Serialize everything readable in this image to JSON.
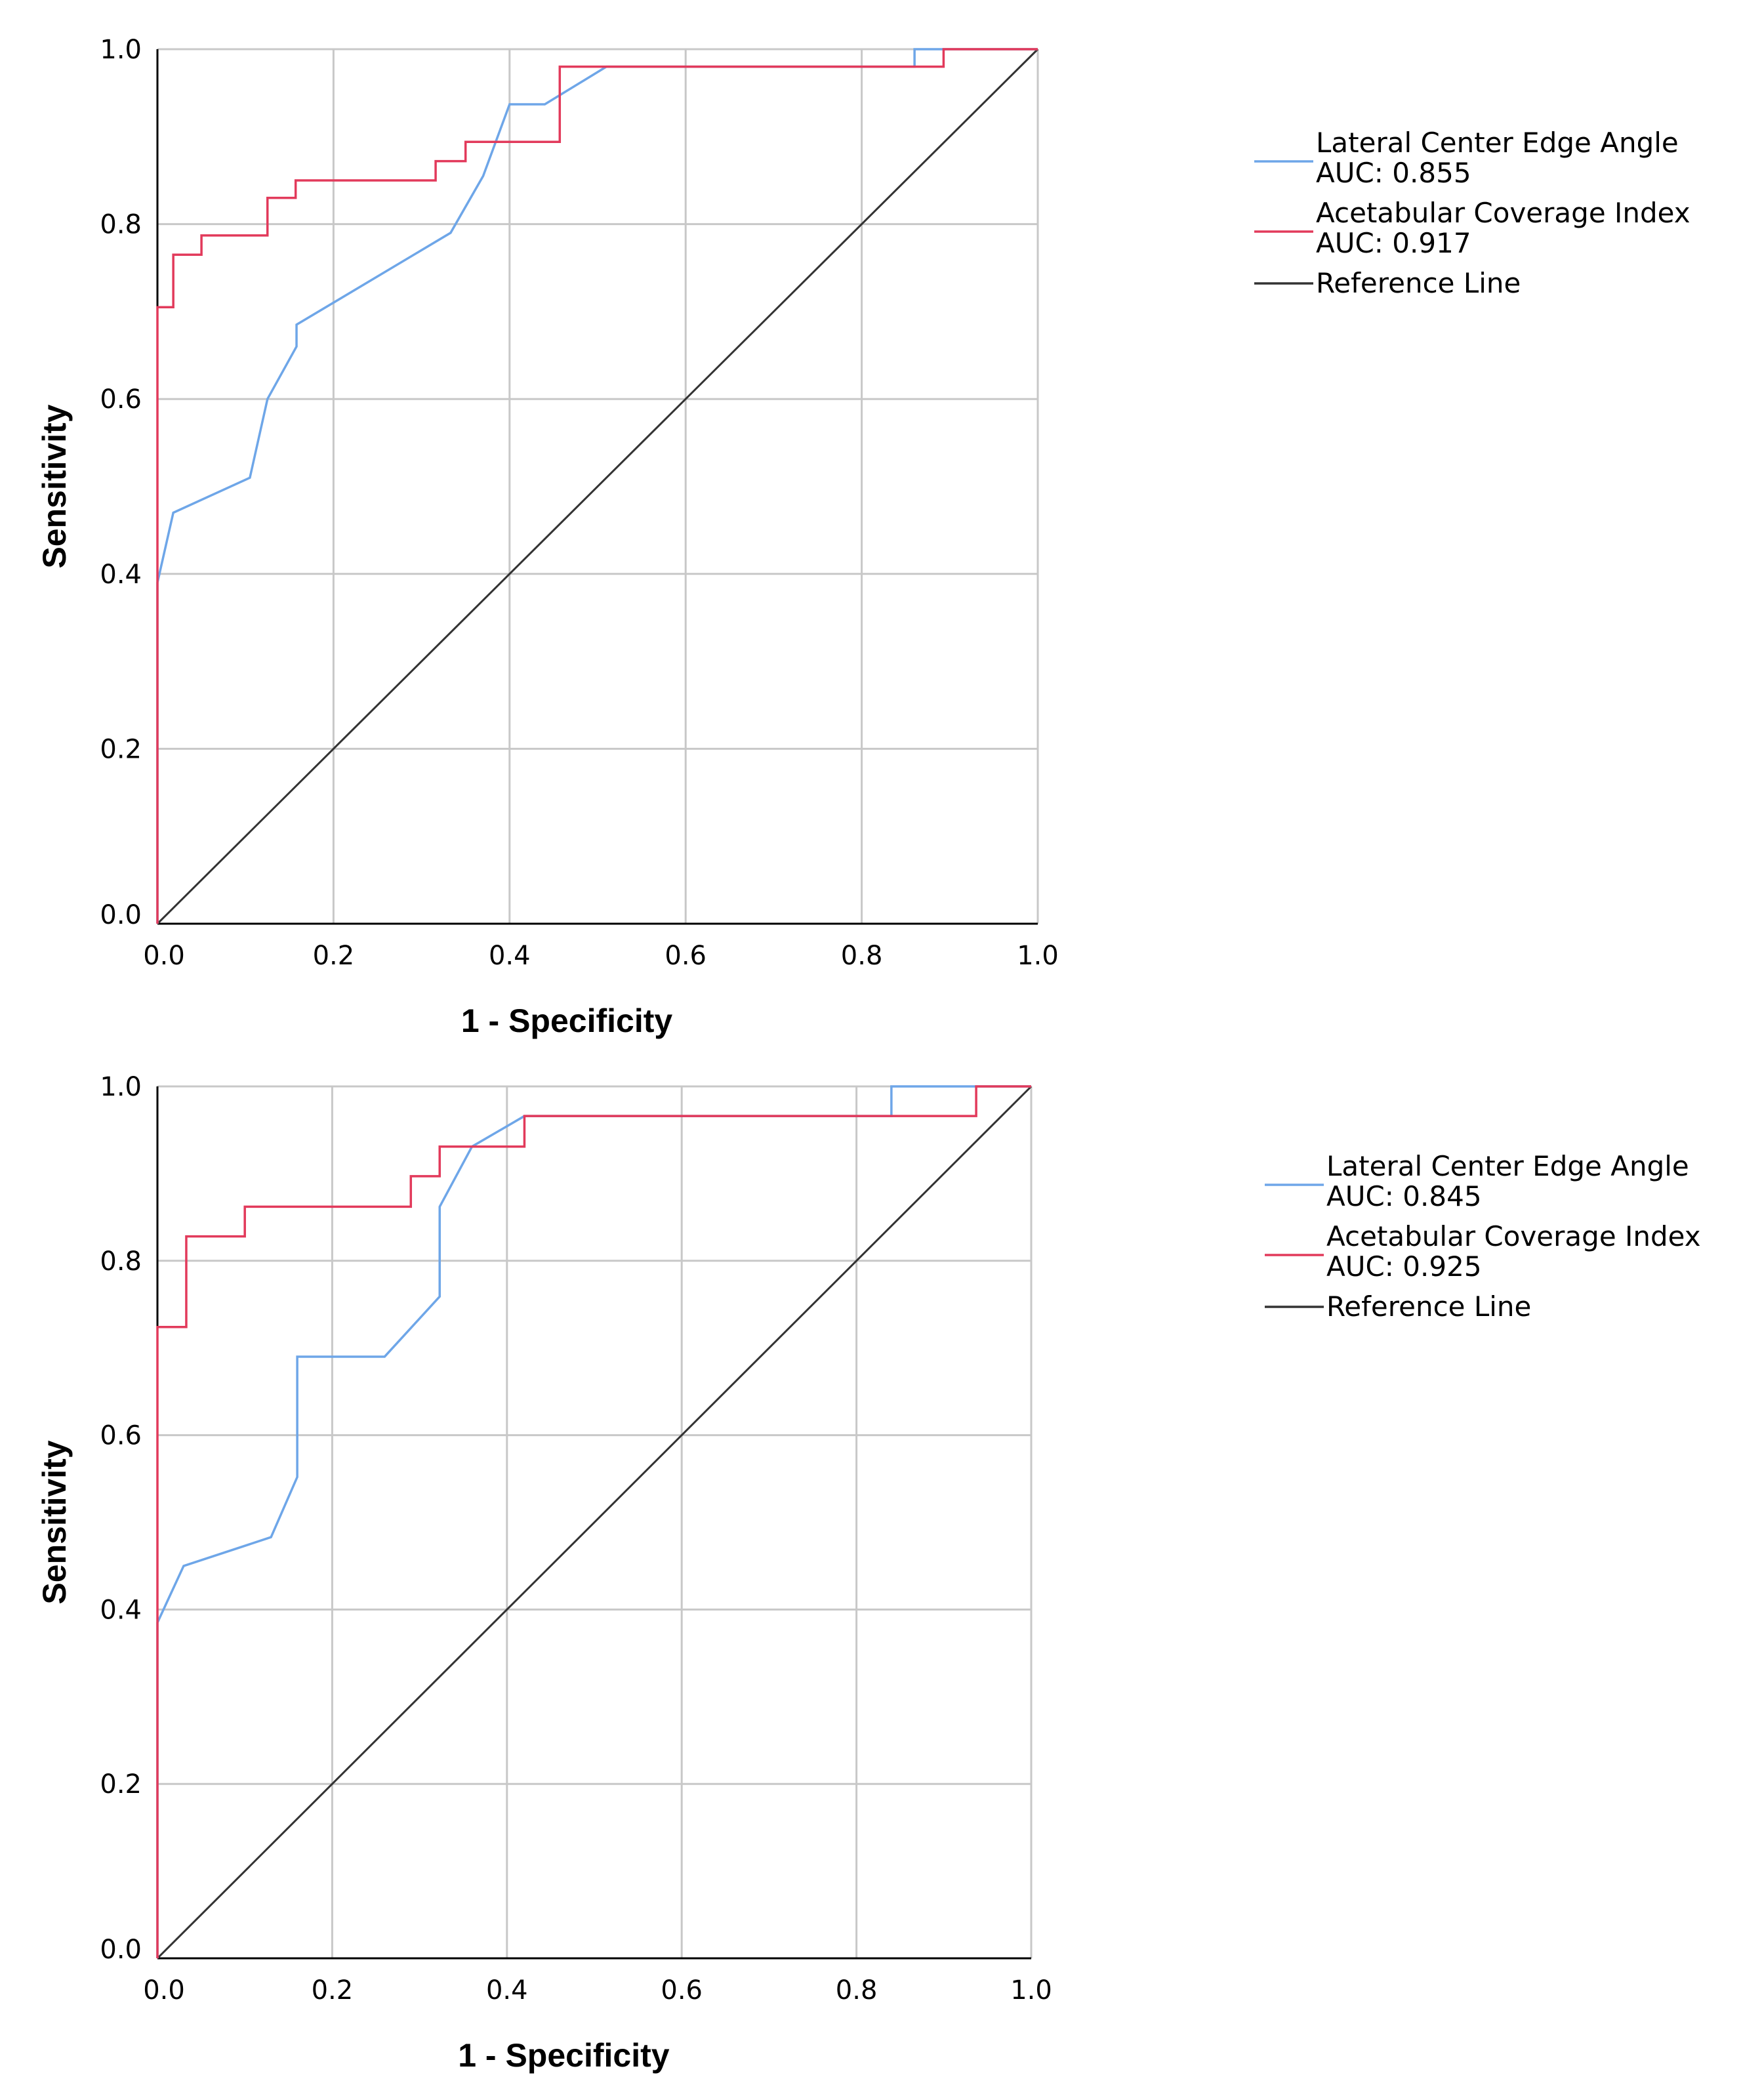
{
  "chart_data": [
    {
      "type": "line",
      "title": "",
      "xlabel": "1 - Specificity",
      "ylabel": "Sensitivity",
      "xlim": [
        0,
        1
      ],
      "ylim": [
        0,
        1
      ],
      "x_ticks": [
        "0.0",
        "0.2",
        "0.4",
        "0.6",
        "0.8",
        "1.0"
      ],
      "y_ticks": [
        "0.0",
        "0.2",
        "0.4",
        "0.6",
        "0.8",
        "1.0"
      ],
      "grid": true,
      "legend_position": "right",
      "series": [
        {
          "name": "Lateral Center Edge Angle",
          "auc_label": "AUC: 0.855",
          "color": "#6ea6e8",
          "x": [
            0,
            0,
            0.018,
            0.105,
            0.125,
            0.158,
            0.158,
            0.333,
            0.37,
            0.4,
            0.44,
            0.51,
            0.86,
            0.86,
            1.0
          ],
          "y": [
            0,
            0.39,
            0.47,
            0.51,
            0.6,
            0.66,
            0.685,
            0.79,
            0.855,
            0.937,
            0.937,
            0.98,
            0.98,
            1.0,
            1.0
          ]
        },
        {
          "name": "Acetabular Coverage Index",
          "auc_label": "AUC: 0.917",
          "color": "#e23a5b",
          "step": true,
          "x": [
            0,
            0,
            0.018,
            0.05,
            0.125,
            0.157,
            0.316,
            0.35,
            0.457,
            0.893,
            1.0
          ],
          "y": [
            0,
            0.705,
            0.765,
            0.787,
            0.83,
            0.85,
            0.872,
            0.894,
            0.98,
            1.0,
            1.0
          ]
        },
        {
          "name": "Reference Line",
          "color": "#333333",
          "x": [
            0,
            1
          ],
          "y": [
            0,
            1
          ]
        }
      ]
    },
    {
      "type": "line",
      "title": "",
      "xlabel": "1 - Specificity",
      "ylabel": "Sensitivity",
      "xlim": [
        0,
        1
      ],
      "ylim": [
        0,
        1
      ],
      "x_ticks": [
        "0.0",
        "0.2",
        "0.4",
        "0.6",
        "0.8",
        "1.0"
      ],
      "y_ticks": [
        "0.0",
        "0.2",
        "0.4",
        "0.6",
        "0.8",
        "1.0"
      ],
      "grid": true,
      "legend_position": "right",
      "series": [
        {
          "name": "Lateral Center Edge Angle",
          "auc_label": "AUC: 0.845",
          "color": "#6ea6e8",
          "x": [
            0,
            0,
            0.03,
            0.13,
            0.16,
            0.16,
            0.26,
            0.323,
            0.323,
            0.36,
            0.42,
            0.84,
            0.84,
            1.0
          ],
          "y": [
            0,
            0.385,
            0.45,
            0.483,
            0.552,
            0.69,
            0.69,
            0.759,
            0.862,
            0.931,
            0.966,
            0.966,
            1.0,
            1.0
          ]
        },
        {
          "name": "Acetabular Coverage Index",
          "auc_label": "AUC: 0.925",
          "color": "#e23a5b",
          "step": true,
          "x": [
            0,
            0,
            0.033,
            0.1,
            0.29,
            0.323,
            0.42,
            0.937,
            1.0
          ],
          "y": [
            0,
            0.724,
            0.828,
            0.862,
            0.897,
            0.931,
            0.966,
            1.0,
            1.0
          ]
        },
        {
          "name": "Reference Line",
          "color": "#333333",
          "x": [
            0,
            1
          ],
          "y": [
            0,
            1
          ]
        }
      ]
    }
  ]
}
